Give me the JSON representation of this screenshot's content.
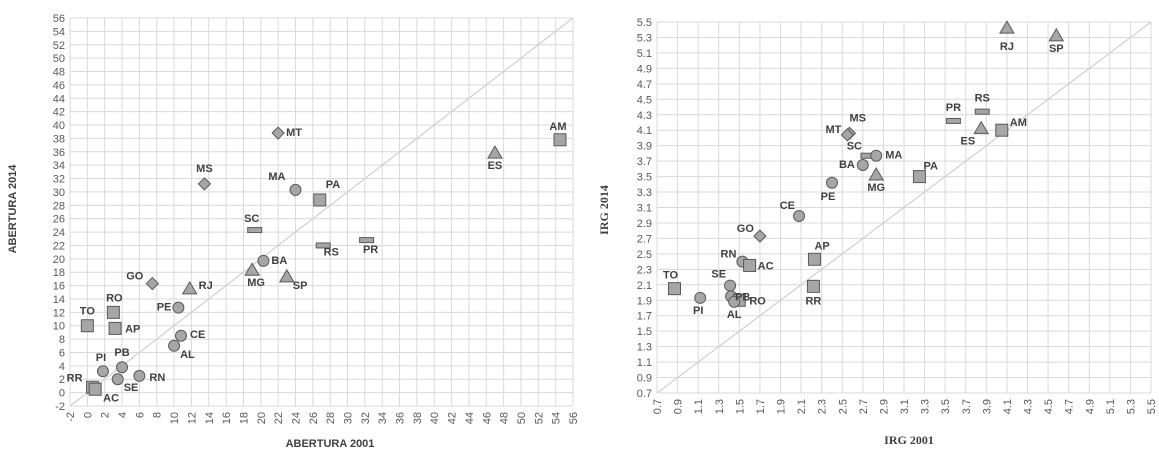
{
  "chart_data": [
    {
      "type": "scatter",
      "title": "",
      "xlabel": "ABERTURA 2001",
      "ylabel": "ABERTURA 2014",
      "xlim": [
        -2,
        56
      ],
      "ylim": [
        -2,
        56
      ],
      "xtick_step": 2,
      "ytick_step": 2,
      "xtick_decimals": 0,
      "ytick_decimals": 0,
      "grid": true,
      "legend": "none",
      "reference_line": "y = x",
      "colors": {
        "marker_fill": "#a6a6a6",
        "marker_stroke": "#595959",
        "grid": "#d9d9d9",
        "diagonal": "#d0d0d0",
        "text": "#404040"
      },
      "points": [
        {
          "label": "AM",
          "x": 54.5,
          "y": 37.8,
          "shape": "square"
        },
        {
          "label": "ES",
          "x": 47.0,
          "y": 35.8,
          "shape": "triangle"
        },
        {
          "label": "MT",
          "x": 22.0,
          "y": 38.8,
          "shape": "diamond"
        },
        {
          "label": "MS",
          "x": 13.5,
          "y": 31.2,
          "shape": "diamond"
        },
        {
          "label": "MA",
          "x": 24.0,
          "y": 30.3,
          "shape": "circle"
        },
        {
          "label": "PA",
          "x": 26.8,
          "y": 28.8,
          "shape": "square"
        },
        {
          "label": "SC",
          "x": 19.3,
          "y": 24.3,
          "shape": "dash"
        },
        {
          "label": "RS",
          "x": 27.2,
          "y": 22.0,
          "shape": "dash"
        },
        {
          "label": "PR",
          "x": 32.2,
          "y": 22.8,
          "shape": "dash"
        },
        {
          "label": "BA",
          "x": 20.3,
          "y": 19.7,
          "shape": "circle"
        },
        {
          "label": "MG",
          "x": 19.0,
          "y": 18.3,
          "shape": "triangle"
        },
        {
          "label": "SP",
          "x": 23.0,
          "y": 17.3,
          "shape": "triangle"
        },
        {
          "label": "GO",
          "x": 7.5,
          "y": 16.3,
          "shape": "diamond"
        },
        {
          "label": "RJ",
          "x": 11.8,
          "y": 15.5,
          "shape": "triangle"
        },
        {
          "label": "PE",
          "x": 10.5,
          "y": 12.7,
          "shape": "circle"
        },
        {
          "label": "RO",
          "x": 3.0,
          "y": 12.0,
          "shape": "square"
        },
        {
          "label": "TO",
          "x": 0.0,
          "y": 10.0,
          "shape": "square"
        },
        {
          "label": "AP",
          "x": 3.2,
          "y": 9.6,
          "shape": "square"
        },
        {
          "label": "CE",
          "x": 10.8,
          "y": 8.5,
          "shape": "circle"
        },
        {
          "label": "AL",
          "x": 10.0,
          "y": 7.0,
          "shape": "circle"
        },
        {
          "label": "PB",
          "x": 4.0,
          "y": 3.8,
          "shape": "circle"
        },
        {
          "label": "PI",
          "x": 1.8,
          "y": 3.2,
          "shape": "circle"
        },
        {
          "label": "RN",
          "x": 6.0,
          "y": 2.5,
          "shape": "circle"
        },
        {
          "label": "SE",
          "x": 3.5,
          "y": 2.0,
          "shape": "circle"
        },
        {
          "label": "RR",
          "x": 0.6,
          "y": 0.8,
          "shape": "square"
        },
        {
          "label": "AC",
          "x": 0.9,
          "y": 0.5,
          "shape": "square"
        }
      ]
    },
    {
      "type": "scatter",
      "title": "",
      "xlabel": "IRG 2001",
      "ylabel": "IRG 2014",
      "xlim": [
        0.7,
        5.5
      ],
      "ylim": [
        0.7,
        5.5
      ],
      "xtick_step": 0.2,
      "ytick_step": 0.2,
      "xtick_decimals": 1,
      "ytick_decimals": 1,
      "grid": true,
      "legend": "none",
      "reference_line": "y = x",
      "colors": {
        "marker_fill": "#a6a6a6",
        "marker_stroke": "#595959",
        "grid": "#d9d9d9",
        "diagonal": "#d0d0d0",
        "text": "#404040"
      },
      "points": [
        {
          "label": "RJ",
          "x": 4.1,
          "y": 5.42,
          "shape": "triangle"
        },
        {
          "label": "SP",
          "x": 4.58,
          "y": 5.32,
          "shape": "triangle"
        },
        {
          "label": "RS",
          "x": 3.86,
          "y": 4.34,
          "shape": "dash"
        },
        {
          "label": "PR",
          "x": 3.58,
          "y": 4.22,
          "shape": "dash"
        },
        {
          "label": "AM",
          "x": 4.05,
          "y": 4.1,
          "shape": "square"
        },
        {
          "label": "ES",
          "x": 3.85,
          "y": 4.12,
          "shape": "triangle"
        },
        {
          "label": "MS",
          "x": 2.57,
          "y": 4.06,
          "shape": "diamond"
        },
        {
          "label": "MT",
          "x": 2.55,
          "y": 4.04,
          "shape": "diamond"
        },
        {
          "label": "SC",
          "x": 2.75,
          "y": 3.77,
          "shape": "dash"
        },
        {
          "label": "MA",
          "x": 2.83,
          "y": 3.77,
          "shape": "circle"
        },
        {
          "label": "BA",
          "x": 2.7,
          "y": 3.65,
          "shape": "circle"
        },
        {
          "label": "MG",
          "x": 2.83,
          "y": 3.52,
          "shape": "triangle"
        },
        {
          "label": "PA",
          "x": 3.25,
          "y": 3.5,
          "shape": "square"
        },
        {
          "label": "PE",
          "x": 2.4,
          "y": 3.42,
          "shape": "circle"
        },
        {
          "label": "CE",
          "x": 2.08,
          "y": 2.99,
          "shape": "circle"
        },
        {
          "label": "GO",
          "x": 1.7,
          "y": 2.73,
          "shape": "diamond"
        },
        {
          "label": "AP",
          "x": 2.23,
          "y": 2.43,
          "shape": "square"
        },
        {
          "label": "RN",
          "x": 1.53,
          "y": 2.4,
          "shape": "circle"
        },
        {
          "label": "AC",
          "x": 1.6,
          "y": 2.35,
          "shape": "square"
        },
        {
          "label": "SE",
          "x": 1.41,
          "y": 2.09,
          "shape": "circle"
        },
        {
          "label": "RR",
          "x": 2.22,
          "y": 2.08,
          "shape": "square"
        },
        {
          "label": "TO",
          "x": 0.87,
          "y": 2.05,
          "shape": "square"
        },
        {
          "label": "PB",
          "x": 1.42,
          "y": 1.95,
          "shape": "circle"
        },
        {
          "label": "PI",
          "x": 1.12,
          "y": 1.93,
          "shape": "circle"
        },
        {
          "label": "RO",
          "x": 1.5,
          "y": 1.9,
          "shape": "square"
        },
        {
          "label": "AL",
          "x": 1.45,
          "y": 1.88,
          "shape": "circle"
        }
      ]
    }
  ]
}
